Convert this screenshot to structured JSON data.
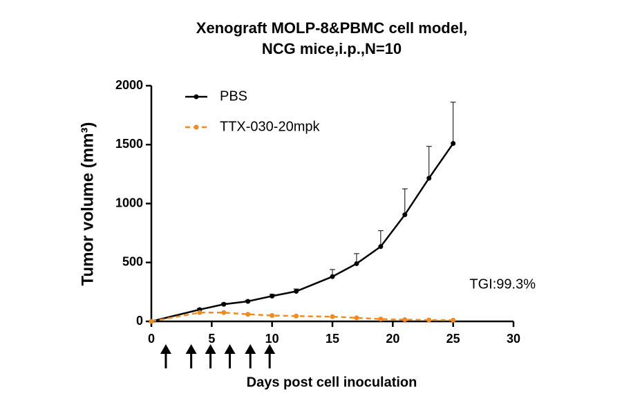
{
  "chart_data": {
    "type": "line",
    "title": [
      "Xenograft MOLP-8&PBMC cell model,",
      "NCG mice,i.p.,N=10"
    ],
    "x_label": "Days post cell inoculation",
    "y_label": "Tumor volume (mm³)",
    "annotation": "TGI:99.3%",
    "xlim": [
      0,
      30
    ],
    "xticks": [
      0,
      5,
      10,
      15,
      20,
      25,
      30
    ],
    "ylim": [
      0,
      2000
    ],
    "yticks": [
      0,
      500,
      1000,
      1500,
      2000
    ],
    "dosing_days": [
      1.2,
      3.3,
      4.9,
      6.5,
      8.2,
      9.8
    ],
    "legend": "upper left",
    "series": [
      {
        "name": "PBS",
        "color": "#000000",
        "dashed": false,
        "x": [
          0,
          4,
          6,
          8,
          10,
          12,
          15,
          17,
          19,
          21,
          23,
          25
        ],
        "values": [
          0,
          100,
          145,
          170,
          215,
          255,
          380,
          490,
          635,
          905,
          1215,
          1510
        ],
        "errors": [
          0,
          10,
          10,
          10,
          15,
          20,
          60,
          85,
          135,
          220,
          270,
          350
        ]
      },
      {
        "name": "TTX-030-20mpk",
        "color": "#f28a1e",
        "dashed": true,
        "x": [
          0,
          4,
          6,
          8,
          10,
          12,
          15,
          17,
          19,
          21,
          23,
          25
        ],
        "values": [
          0,
          75,
          75,
          60,
          50,
          45,
          40,
          30,
          20,
          15,
          12,
          10
        ]
      }
    ]
  }
}
